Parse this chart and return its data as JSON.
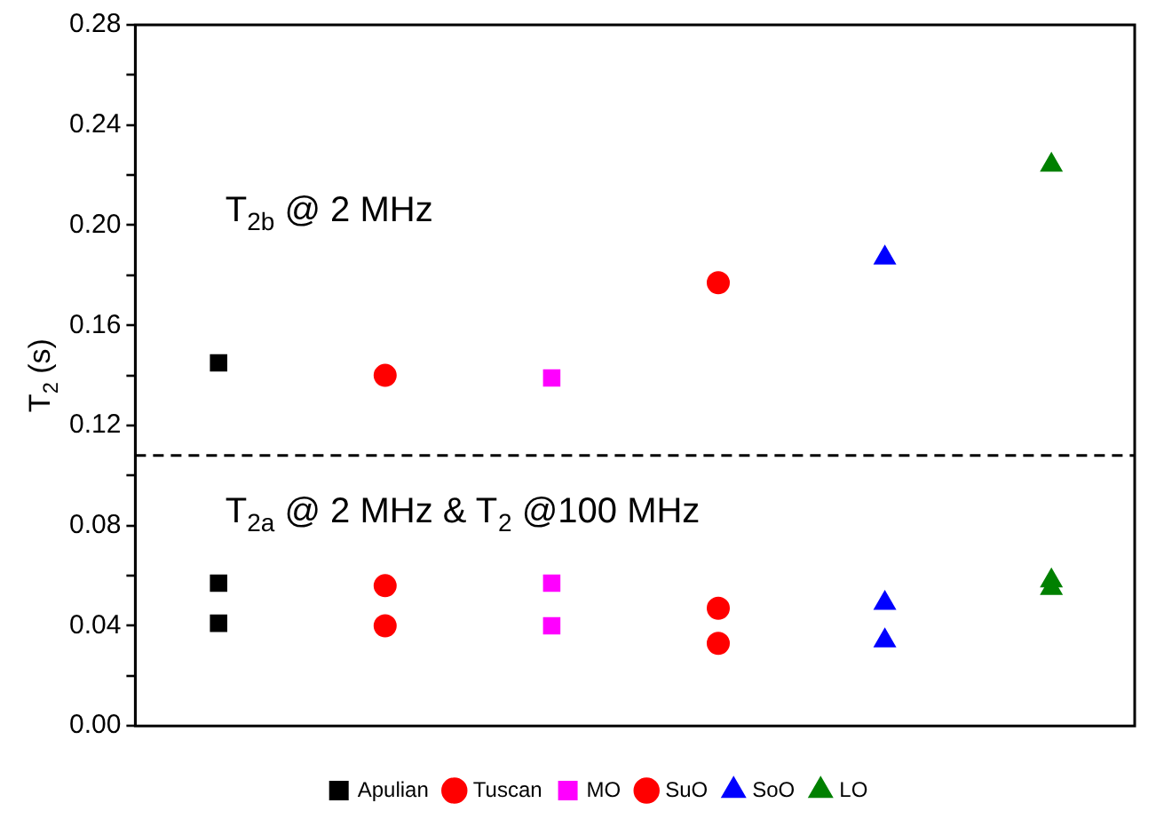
{
  "chart_data": {
    "type": "scatter",
    "ylabel": "T$_{2}$ (s)",
    "categories": [
      null,
      null,
      null,
      null,
      null,
      null
    ],
    "ylim": [
      0,
      0.28
    ],
    "yticks": [
      {
        "value": 0,
        "label": "0.00"
      },
      {
        "value": 0.02,
        "label": null
      },
      {
        "value": 0.04,
        "label": "0.04"
      },
      {
        "value": 0.06,
        "label": null
      },
      {
        "value": 0.08,
        "label": "0.08"
      },
      {
        "value": 0.1,
        "label": null
      },
      {
        "value": 0.12,
        "label": "0.12"
      },
      {
        "value": 0.14,
        "label": null
      },
      {
        "value": 0.16,
        "label": "0.16"
      },
      {
        "value": 0.18,
        "label": null
      },
      {
        "value": 0.2,
        "label": "0.20"
      },
      {
        "value": 0.22,
        "label": null
      },
      {
        "value": 0.24,
        "label": "0.24"
      },
      {
        "value": 0.26,
        "label": null
      },
      {
        "value": 0.28,
        "label": "0.28"
      }
    ],
    "series": [
      {
        "name": "Apulian",
        "color": "#000000",
        "marker": "square",
        "values": [
          0.145,
          null,
          null,
          null,
          null,
          null
        ]
      },
      {
        "color": "#000000",
        "marker": "square",
        "values": [
          0.057,
          null,
          null,
          null,
          null,
          null
        ]
      },
      {
        "color": "#000000",
        "marker": "square",
        "values": [
          0.041,
          null,
          null,
          null,
          null,
          null
        ]
      },
      {
        "name": "Tuscan",
        "color": "#ff0000",
        "marker": "circle",
        "values": [
          null,
          0.14,
          null,
          null,
          null,
          null
        ]
      },
      {
        "color": "#ff0000",
        "marker": "circle",
        "values": [
          null,
          0.056,
          null,
          null,
          null,
          null
        ]
      },
      {
        "color": "#ff0000",
        "marker": "circle",
        "values": [
          null,
          0.04,
          null,
          null,
          null,
          null
        ]
      },
      {
        "name": "MO",
        "color": "#ff00ff",
        "marker": "square",
        "values": [
          null,
          null,
          0.139,
          null,
          null,
          null
        ]
      },
      {
        "color": "#ff00ff",
        "marker": "square",
        "values": [
          null,
          null,
          0.057,
          null,
          null,
          null
        ]
      },
      {
        "color": "#ff00ff",
        "marker": "square",
        "values": [
          null,
          null,
          0.04,
          null,
          null,
          null
        ]
      },
      {
        "name": "SuO",
        "color": "#ff0000",
        "marker": "circle",
        "values": [
          null,
          null,
          null,
          0.177,
          null,
          null
        ]
      },
      {
        "color": "#ff0000",
        "marker": "circle",
        "values": [
          null,
          null,
          null,
          0.047,
          null,
          null
        ]
      },
      {
        "color": "#ff0000",
        "marker": "circle",
        "values": [
          null,
          null,
          null,
          0.033,
          null,
          null
        ]
      },
      {
        "name": "SoO",
        "color": "#0000ff",
        "marker": "triangle",
        "values": [
          null,
          null,
          null,
          null,
          0.187,
          null
        ]
      },
      {
        "color": "#0000ff",
        "marker": "triangle",
        "values": [
          null,
          null,
          null,
          null,
          0.049,
          null
        ]
      },
      {
        "color": "#0000ff",
        "marker": "triangle",
        "values": [
          null,
          null,
          null,
          null,
          0.034,
          null
        ]
      },
      {
        "name": "LO",
        "color": "#008000",
        "marker": "triangle",
        "values": [
          null,
          null,
          null,
          null,
          null,
          0.224
        ]
      },
      {
        "color": "#008000",
        "marker": "triangle",
        "values": [
          null,
          null,
          null,
          null,
          null,
          0.058
        ]
      },
      {
        "color": "#008000",
        "marker": "triangle",
        "values": [
          null,
          null,
          null,
          null,
          null,
          0.055
        ]
      }
    ],
    "ref_lines": [
      {
        "axis": "y",
        "value": 0.108,
        "color": "#000000",
        "line_style": "dashed"
      }
    ],
    "annotations": [
      "T$_{2b}$ @ 2 MHz",
      "T$_{2a}$ @ 2 MHz & T$_{2}$ @100 MHz"
    ],
    "legend": "bottom",
    "grid": false
  }
}
